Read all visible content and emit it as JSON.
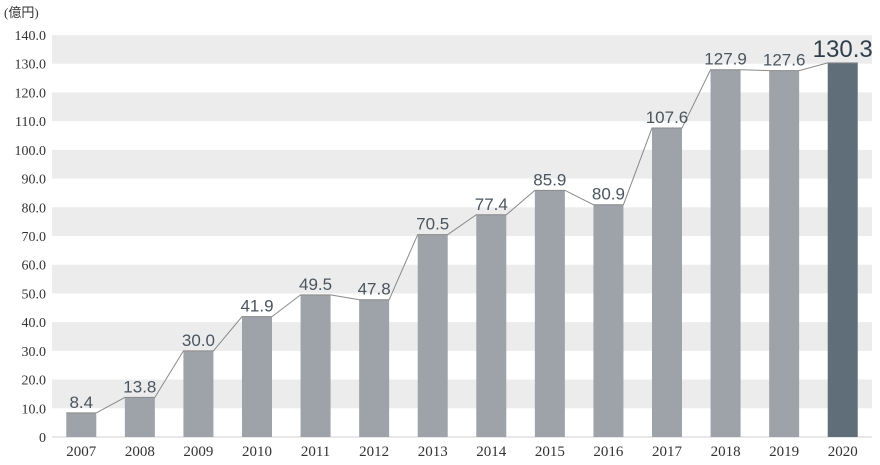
{
  "unit_label": "(億円)",
  "colors": {
    "bar": "#9da3a8",
    "bar_highlight": "#5f6e79",
    "band": "#ececec",
    "line": "#8a8a8a",
    "label": "#4a5560"
  },
  "chart_data": {
    "type": "bar",
    "title": "",
    "xlabel": "",
    "ylabel": "(億円)",
    "categories": [
      "2007",
      "2008",
      "2009",
      "2010",
      "2011",
      "2012",
      "2013",
      "2014",
      "2015",
      "2016",
      "2017",
      "2018",
      "2019",
      "2020"
    ],
    "values": [
      8.4,
      13.8,
      30.0,
      41.9,
      49.5,
      47.8,
      70.5,
      77.4,
      85.9,
      80.9,
      107.6,
      127.9,
      127.6,
      130.3
    ],
    "value_labels": [
      "8.4",
      "13.8",
      "30.0",
      "41.9",
      "49.5",
      "47.8",
      "70.5",
      "77.4",
      "85.9",
      "80.9",
      "107.6",
      "127.9",
      "127.6",
      "130.3"
    ],
    "yticks": [
      "0",
      "10.0",
      "20.0",
      "30.0",
      "40.0",
      "50.0",
      "60.0",
      "70.0",
      "80.0",
      "90.0",
      "100.0",
      "110.0",
      "120.0",
      "130.0",
      "140.0"
    ],
    "ylim": [
      0,
      140
    ],
    "highlight_index": 13,
    "connector_line": true,
    "grid": "alternating horizontal bands",
    "legend": "none"
  }
}
